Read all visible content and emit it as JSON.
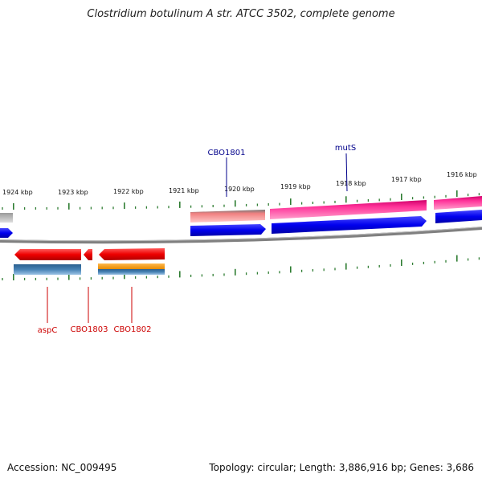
{
  "title": "Clostridium botulinum A str. ATCC 3502, complete genome",
  "footer": {
    "accession": "Accession: NC_009495",
    "summary": "Topology: circular; Length: 3,886,916 bp; Genes: 3,686"
  },
  "scale_labels": [
    "1924 kbp",
    "1923 kbp",
    "1922 kbp",
    "1921 kbp",
    "1920 kbp",
    "1919 kbp",
    "1918 kbp",
    "1917 kbp",
    "1916 kbp"
  ],
  "gene_labels": {
    "top": [
      "CBO1801",
      "mutS"
    ],
    "bottom": [
      "aspC",
      "CBO1803",
      "CBO1802"
    ]
  },
  "colors": {
    "forward_label": "#00008b",
    "reverse_label": "#cc0000",
    "tick": "#2e7d32",
    "cds_blue": "#0000ee",
    "cds_red": "#ee0000",
    "cds_pink": "#ff3399",
    "cds_salmon": "#f08080",
    "cds_orange": "#ff9900",
    "cds_steel": "#4682b4",
    "backbone": "#808080"
  }
}
